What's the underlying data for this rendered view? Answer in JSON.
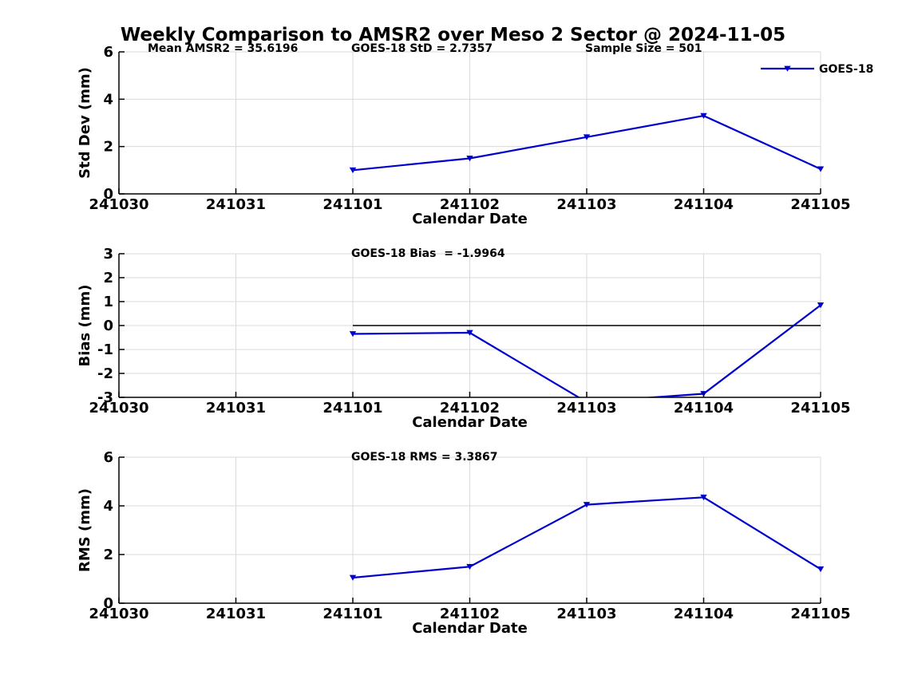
{
  "figure": {
    "title": "Weekly Comparison to AMSR2 over Meso 2 Sector @ 2024-11-05"
  },
  "colors": {
    "line": "#0000cc",
    "grid": "#d9d9d9",
    "axis": "#000000",
    "text": "#000000",
    "zero_line": "#000000",
    "background": "#ffffff"
  },
  "legend": {
    "label": "GOES-18",
    "position": "top-right",
    "marker": "triangle-down"
  },
  "chart_data": [
    {
      "type": "line",
      "ylabel": "Std Dev (mm)",
      "xlabel": "Calendar Date",
      "x_tick_labels": [
        "241030",
        "241031",
        "241101",
        "241102",
        "241103",
        "241104",
        "241105"
      ],
      "ylim": [
        0,
        6
      ],
      "yticks": [
        0,
        2,
        4,
        6
      ],
      "grid": true,
      "annotations": [
        "Mean AMSR2 = 35.6196",
        "GOES-18 StD = 2.7357",
        "Sample Size = 501"
      ],
      "legend": "GOES-18",
      "series": [
        {
          "name": "GOES-18",
          "x": [
            "241101",
            "241102",
            "241103",
            "241104",
            "241105"
          ],
          "values": [
            1.0,
            1.5,
            2.4,
            3.3,
            1.05
          ]
        }
      ]
    },
    {
      "type": "line",
      "ylabel": "Bias (mm)",
      "xlabel": "Calendar Date",
      "x_tick_labels": [
        "241030",
        "241031",
        "241101",
        "241102",
        "241103",
        "241104",
        "241105"
      ],
      "ylim": [
        -3,
        3
      ],
      "yticks": [
        -3,
        -2,
        -1,
        0,
        1,
        2,
        3
      ],
      "grid": true,
      "zero_line": {
        "from_x": "241101",
        "to_x": "241105"
      },
      "annotations": [
        "GOES-18 Bias  = -1.9964"
      ],
      "series": [
        {
          "name": "GOES-18",
          "x": [
            "241101",
            "241102",
            "241103",
            "241104",
            "241105"
          ],
          "values": [
            -0.35,
            -0.3,
            -3.2,
            -2.85,
            0.85
          ]
        }
      ]
    },
    {
      "type": "line",
      "ylabel": "RMS (mm)",
      "xlabel": "Calendar Date",
      "x_tick_labels": [
        "241030",
        "241031",
        "241101",
        "241102",
        "241103",
        "241104",
        "241105"
      ],
      "ylim": [
        0,
        6
      ],
      "yticks": [
        0,
        2,
        4,
        6
      ],
      "grid": true,
      "annotations": [
        "GOES-18 RMS = 3.3867"
      ],
      "series": [
        {
          "name": "GOES-18",
          "x": [
            "241101",
            "241102",
            "241103",
            "241104",
            "241105"
          ],
          "values": [
            1.05,
            1.5,
            4.05,
            4.35,
            1.4
          ]
        }
      ]
    }
  ]
}
